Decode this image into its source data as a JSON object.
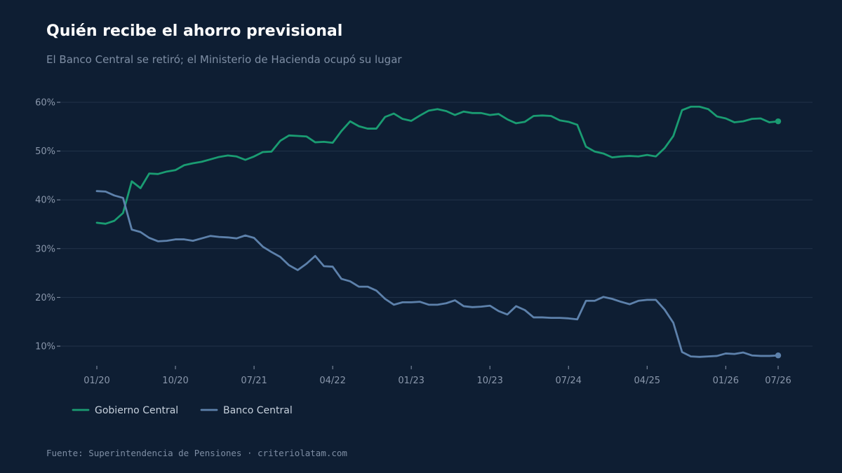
{
  "title": "Quién recibe el ahorro previsional",
  "subtitle": "El Banco Central se retiró; el Ministerio de Hacienda ocupó su lugar",
  "source": "Fuente: Superintendencia de Pensiones · criteriolatam.com",
  "colors": {
    "background": "#0e1e33",
    "grid": "#22334a",
    "gobierno": "#1a9c72",
    "banco": "#5d81ab"
  },
  "chart_data": {
    "type": "line",
    "grid": true,
    "legend_position": "bottom-left",
    "ylim": [
      5,
      63
    ],
    "y_ticks": [
      10,
      20,
      30,
      40,
      50,
      60
    ],
    "y_tick_labels": [
      "10%",
      "20%",
      "30%",
      "40%",
      "50%",
      "60%"
    ],
    "x_ticks": [
      0,
      9,
      18,
      27,
      36,
      45,
      54,
      63,
      72,
      78
    ],
    "x_tick_labels": [
      "01/20",
      "10/20",
      "07/21",
      "04/22",
      "01/23",
      "10/23",
      "07/24",
      "04/25",
      "01/26",
      "07/26"
    ],
    "x_start": "01/20",
    "x_end": "07/26",
    "series": [
      {
        "name": "Gobierno Central",
        "color": "#1a9c72",
        "values": [
          35.3,
          35.1,
          35.7,
          37.3,
          43.8,
          42.4,
          45.4,
          45.3,
          45.8,
          46.1,
          47.1,
          47.5,
          47.8,
          48.3,
          48.8,
          49.1,
          48.9,
          48.2,
          48.9,
          49.8,
          49.9,
          52.1,
          53.2,
          53.1,
          53.0,
          51.8,
          51.9,
          51.7,
          54.1,
          56.1,
          55.1,
          54.6,
          54.6,
          57.0,
          57.7,
          56.6,
          56.2,
          57.3,
          58.3,
          58.6,
          58.2,
          57.4,
          58.1,
          57.8,
          57.8,
          57.4,
          57.6,
          56.5,
          55.7,
          56.0,
          57.2,
          57.3,
          57.2,
          56.3,
          56.0,
          55.4,
          50.9,
          49.9,
          49.5,
          48.7,
          48.9,
          49.0,
          48.9,
          49.2,
          48.9,
          50.6,
          53.1,
          58.4,
          59.1,
          59.1,
          58.6,
          57.1,
          56.7,
          55.9,
          56.1,
          56.6,
          56.7,
          55.9,
          56.1
        ]
      },
      {
        "name": "Banco Central",
        "color": "#5d81ab",
        "values": [
          41.8,
          41.7,
          40.9,
          40.4,
          33.9,
          33.4,
          32.2,
          31.5,
          31.6,
          31.9,
          31.9,
          31.6,
          32.1,
          32.6,
          32.4,
          32.3,
          32.1,
          32.7,
          32.2,
          30.4,
          29.3,
          28.3,
          26.6,
          25.6,
          26.9,
          28.5,
          26.4,
          26.3,
          23.8,
          23.3,
          22.2,
          22.2,
          21.4,
          19.7,
          18.5,
          19.0,
          19.0,
          19.1,
          18.5,
          18.5,
          18.8,
          19.4,
          18.2,
          18.0,
          18.1,
          18.3,
          17.2,
          16.5,
          18.2,
          17.4,
          15.9,
          15.9,
          15.8,
          15.8,
          15.7,
          15.5,
          19.3,
          19.3,
          20.1,
          19.7,
          19.1,
          18.6,
          19.3,
          19.5,
          19.5,
          17.5,
          14.8,
          8.8,
          7.9,
          7.8,
          7.9,
          8.0,
          8.5,
          8.4,
          8.7,
          8.1,
          8.0,
          8.0,
          8.1
        ]
      }
    ]
  }
}
